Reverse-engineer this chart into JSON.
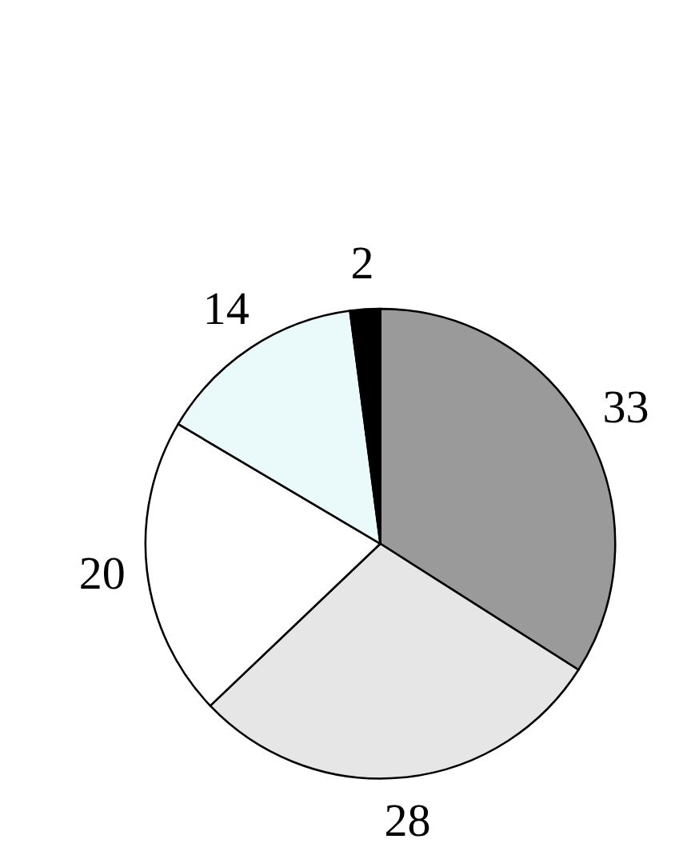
{
  "chart_data": {
    "type": "pie",
    "categories": [
      null,
      null,
      null,
      null,
      null
    ],
    "values": [
      33,
      28,
      20,
      14,
      2
    ],
    "colors": [
      "#9a9a9a",
      "#e6e6e6",
      "#ffffff",
      "#eafafa",
      "#000000"
    ],
    "data_labels": true,
    "legend": false
  }
}
